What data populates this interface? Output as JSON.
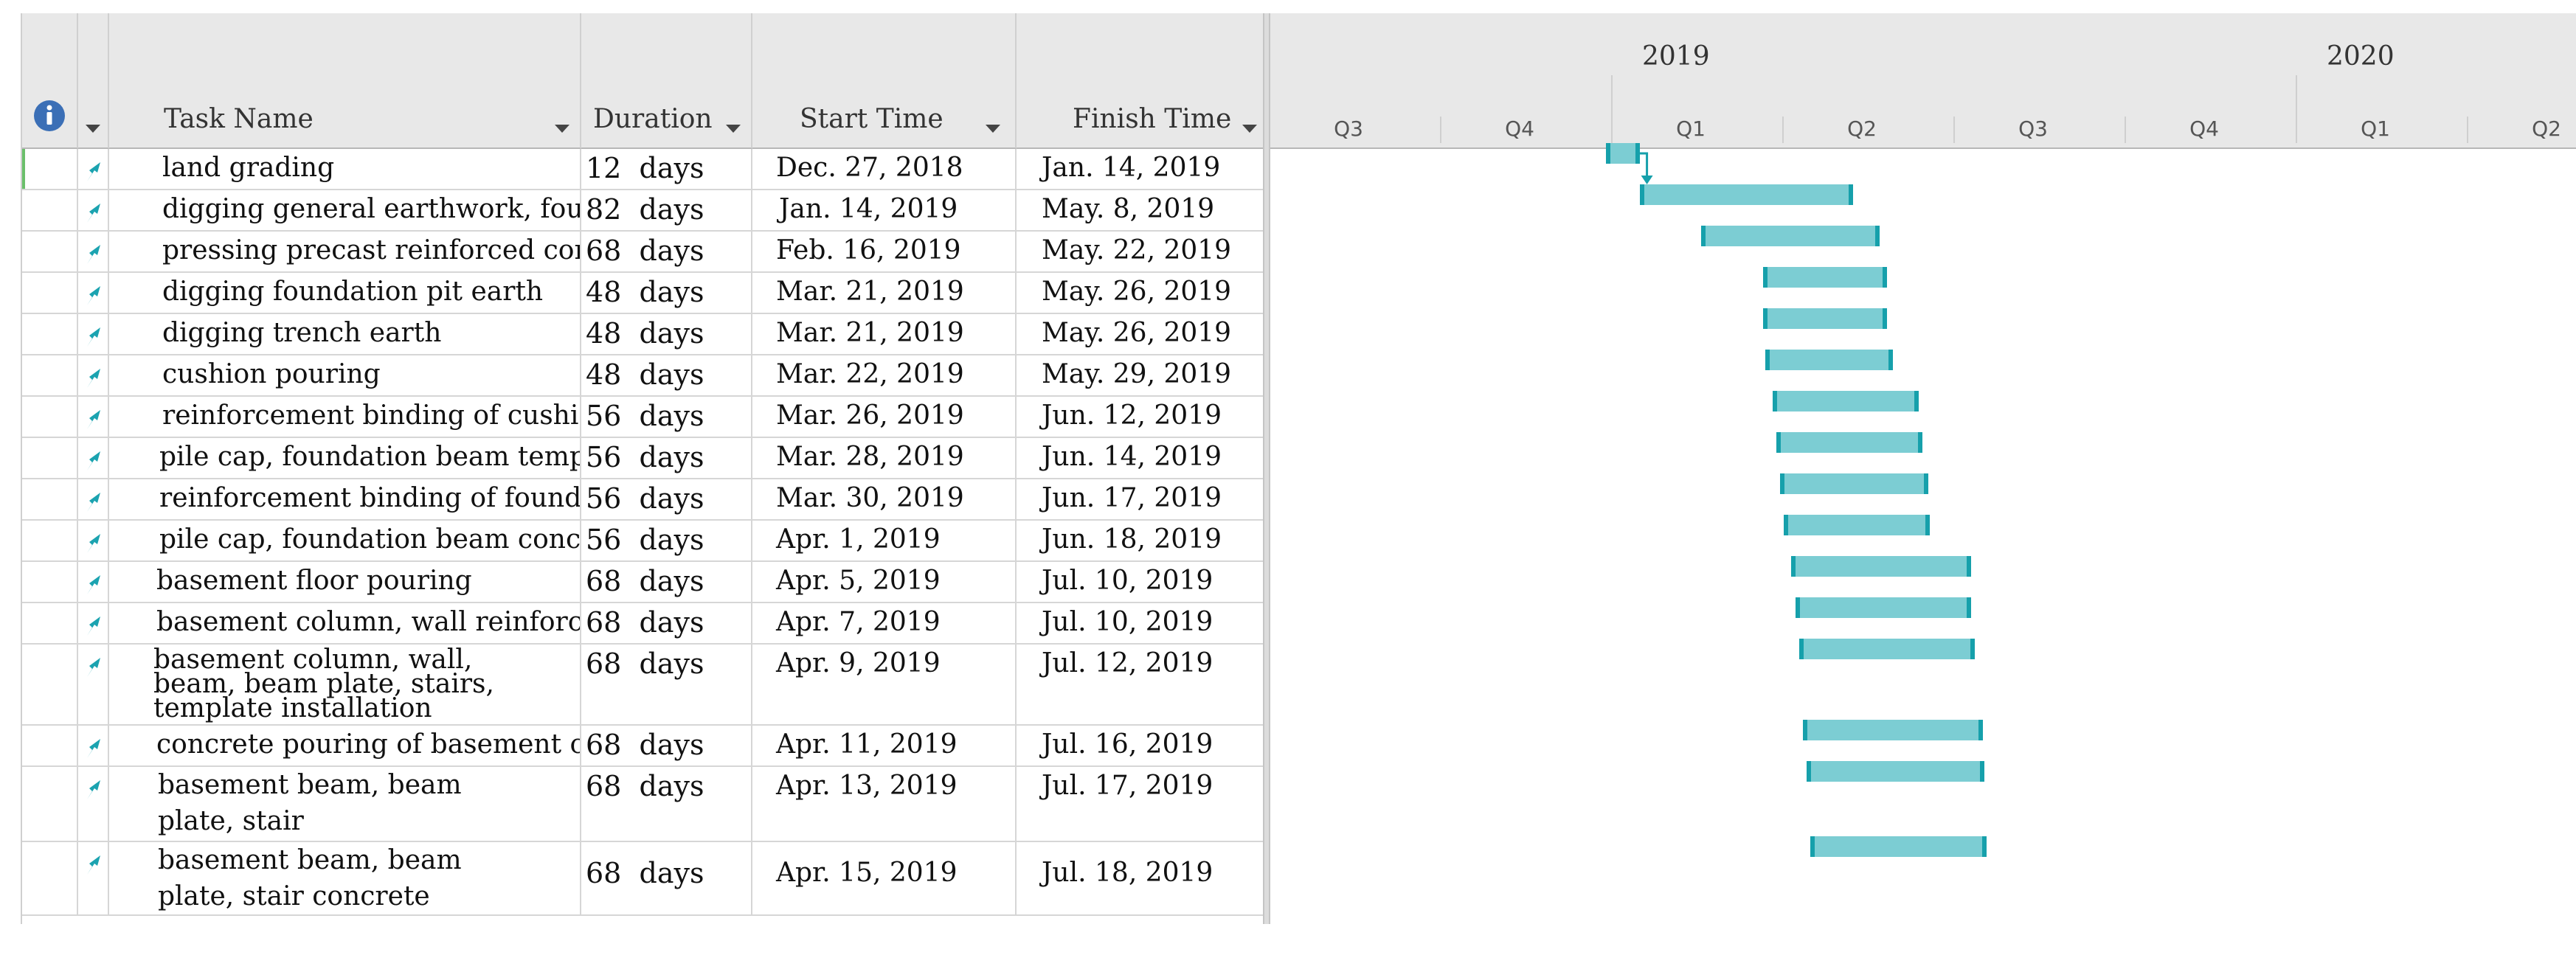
{
  "columns": {
    "indicators_icon": "info-icon",
    "task_name": "Task Name",
    "duration": "Duration",
    "start_time": "Start Time",
    "finish_time": "Finish Time"
  },
  "timescale": {
    "years": [
      "2019",
      "2020"
    ],
    "quarters": [
      "Q3",
      "Q4",
      "Q1",
      "Q2",
      "Q3",
      "Q4",
      "Q1",
      "Q2"
    ]
  },
  "colors": {
    "bar_fill": "#7ccdd3",
    "bar_edge": "#16a0ab",
    "task_mode_icon": "#1ba3b0",
    "info_icon": "#3b6fb6"
  },
  "tasks": [
    {
      "name": "land grading",
      "duration": "12  days",
      "start": "Dec. 27, 2018",
      "finish": "Jan. 14, 2019"
    },
    {
      "name": "digging general earthwork, fou",
      "duration": "82  days",
      "start": "Jan. 14, 2019",
      "finish": "May. 8, 2019"
    },
    {
      "name": "pressing precast reinforced con",
      "duration": "68  days",
      "start": "Feb. 16, 2019",
      "finish": "May. 22, 2019"
    },
    {
      "name": "digging foundation pit earth",
      "duration": "48  days",
      "start": "Mar. 21, 2019",
      "finish": "May. 26, 2019"
    },
    {
      "name": "digging trench earth",
      "duration": "48  days",
      "start": "Mar. 21, 2019",
      "finish": "May. 26, 2019"
    },
    {
      "name": "cushion pouring",
      "duration": "48  days",
      "start": "Mar. 22, 2019",
      "finish": "May. 29, 2019"
    },
    {
      "name": "reinforcement binding of cushi",
      "duration": "56  days",
      "start": "Mar. 26, 2019",
      "finish": "Jun. 12, 2019"
    },
    {
      "name": "pile cap, foundation beam temp",
      "duration": "56  days",
      "start": "Mar. 28, 2019",
      "finish": "Jun. 14, 2019"
    },
    {
      "name": "reinforcement binding of found",
      "duration": "56  days",
      "start": "Mar. 30, 2019",
      "finish": "Jun. 17, 2019"
    },
    {
      "name": "pile cap, foundation beam conc",
      "duration": "56  days",
      "start": "Apr. 1, 2019",
      "finish": "Jun. 18, 2019"
    },
    {
      "name": "basement floor pouring",
      "duration": "68  days",
      "start": "Apr. 5, 2019",
      "finish": "Jul. 10, 2019"
    },
    {
      "name": "basement column, wall reinforc",
      "duration": "68  days",
      "start": "Apr. 7, 2019",
      "finish": "Jul. 10, 2019"
    },
    {
      "name": "basement column, wall, beam, beam plate, stairs, template installation",
      "duration": "68  days",
      "start": "Apr. 9, 2019",
      "finish": "Jul. 12, 2019"
    },
    {
      "name": "concrete pouring of basement c",
      "duration": "68  days",
      "start": "Apr. 11, 2019",
      "finish": "Jul. 16, 2019"
    },
    {
      "name": "basement beam, beam plate, stair reinforcement binding",
      "duration": "68  days",
      "start": "Apr. 13, 2019",
      "finish": "Jul. 17, 2019"
    },
    {
      "name": "basement beam, beam plate, stair concrete pouring",
      "duration": "68  days",
      "start": "Apr. 15, 2019",
      "finish": "Jul. 18, 2019"
    }
  ]
}
